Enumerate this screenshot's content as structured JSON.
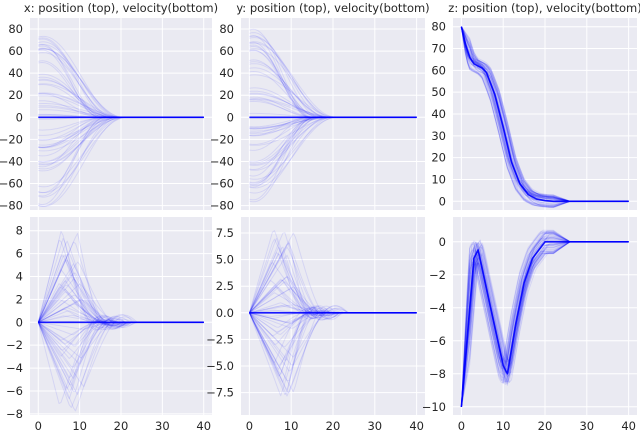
{
  "chart_data": [
    {
      "id": "x_position",
      "type": "line",
      "title": "x: position (top), velocity(bottom)",
      "xlim": [
        -2,
        42
      ],
      "ylim": [
        -84,
        90
      ],
      "xticks": [
        0,
        10,
        20,
        30,
        40
      ],
      "xtick_labels": [],
      "yticks": [
        -80,
        -60,
        -40,
        -20,
        0,
        20,
        40,
        60,
        80
      ],
      "ytick_labels": [
        "−80",
        "−60",
        "−40",
        "−20",
        "0",
        "20",
        "40",
        "60",
        "80"
      ],
      "series": [
        {
          "x": [
            0,
            3,
            6,
            9,
            12,
            15,
            18,
            21,
            24,
            30,
            40
          ],
          "y": [
            0,
            0,
            0,
            0,
            0,
            0,
            0,
            0,
            0,
            0,
            0
          ]
        }
      ],
      "spread": {
        "start": 80,
        "settle_time": 18,
        "peak": 1.1
      },
      "color": "#0000ff",
      "grid": true
    },
    {
      "id": "y_position",
      "type": "line",
      "title": "y: position (top), velocity(bottom)",
      "xlim": [
        -2,
        42
      ],
      "ylim": [
        -84,
        90
      ],
      "xticks": [
        0,
        10,
        20,
        30,
        40
      ],
      "xtick_labels": [],
      "yticks": [
        -80,
        -60,
        -40,
        -20,
        0,
        20,
        40,
        60,
        80
      ],
      "ytick_labels": [
        "−80",
        "−60",
        "−40",
        "−20",
        "0",
        "20",
        "40",
        "60",
        "80"
      ],
      "series": [
        {
          "x": [
            0,
            3,
            6,
            9,
            12,
            15,
            18,
            21,
            24,
            30,
            40
          ],
          "y": [
            0,
            0,
            0,
            0,
            0,
            0,
            0,
            0,
            0,
            0,
            0
          ]
        }
      ],
      "spread": {
        "start": 80,
        "settle_time": 18,
        "peak": 1.1
      },
      "color": "#0000ff",
      "grid": true
    },
    {
      "id": "z_position",
      "type": "line",
      "title": "z: position (top), velocity(bottom)",
      "xlim": [
        -2,
        42
      ],
      "ylim": [
        -4,
        84
      ],
      "xticks": [
        0,
        10,
        20,
        30,
        40
      ],
      "xtick_labels": [],
      "yticks": [
        0,
        10,
        20,
        30,
        40,
        50,
        60,
        70,
        80
      ],
      "ytick_labels": [
        "0",
        "10",
        "20",
        "30",
        "40",
        "50",
        "60",
        "70",
        "80"
      ],
      "series": [
        {
          "x": [
            0,
            1,
            2,
            3,
            4,
            5,
            6,
            8,
            10,
            12,
            14,
            16,
            18,
            20,
            22,
            26,
            40
          ],
          "y": [
            80,
            72,
            66,
            63,
            62,
            61,
            59,
            49,
            34,
            18,
            8,
            3,
            1,
            0.3,
            0,
            0,
            0
          ]
        }
      ],
      "spread_abs": 5,
      "color": "#0000ff",
      "grid": true
    },
    {
      "id": "x_velocity",
      "type": "line",
      "title": "",
      "xlim": [
        -2,
        42
      ],
      "ylim": [
        -8.1,
        9.2
      ],
      "xticks": [
        0,
        10,
        20,
        30,
        40
      ],
      "xtick_labels": [
        "0",
        "10",
        "20",
        "30",
        "40"
      ],
      "yticks": [
        -8,
        -6,
        -4,
        -2,
        0,
        2,
        4,
        6,
        8
      ],
      "ytick_labels": [
        "−8",
        "−6",
        "−4",
        "−2",
        "0",
        "2",
        "4",
        "6",
        "8"
      ],
      "series": [
        {
          "x": [
            0,
            3,
            6,
            9,
            12,
            15,
            18,
            21,
            24,
            30,
            40
          ],
          "y": [
            0,
            0,
            0,
            0,
            0,
            0,
            0,
            0,
            0,
            0,
            0
          ]
        }
      ],
      "spread": {
        "start": 8.2,
        "settle_time": 20,
        "peak": 1.0
      },
      "color": "#0000ff",
      "grid": true
    },
    {
      "id": "y_velocity",
      "type": "line",
      "title": "",
      "xlim": [
        -2,
        42
      ],
      "ylim": [
        -9.6,
        9.0
      ],
      "xticks": [
        0,
        10,
        20,
        30,
        40
      ],
      "xtick_labels": [
        "0",
        "10",
        "20",
        "30",
        "40"
      ],
      "yticks": [
        -7.5,
        -5,
        -2.5,
        0,
        2.5,
        5,
        7.5
      ],
      "ytick_labels": [
        "−7.5",
        "−5.0",
        "−2.5",
        "0.0",
        "2.5",
        "5.0",
        "7.5"
      ],
      "series": [
        {
          "x": [
            0,
            3,
            6,
            9,
            12,
            15,
            18,
            21,
            24,
            30,
            40
          ],
          "y": [
            0,
            0,
            0,
            0,
            0,
            0,
            0,
            0,
            0,
            0,
            0
          ]
        }
      ],
      "spread": {
        "start": 8.0,
        "settle_time": 20,
        "peak": 1.0
      },
      "color": "#0000ff",
      "grid": true
    },
    {
      "id": "z_velocity",
      "type": "line",
      "title": "",
      "xlim": [
        -2,
        42
      ],
      "ylim": [
        -10.5,
        1.5
      ],
      "xticks": [
        0,
        10,
        20,
        30,
        40
      ],
      "xtick_labels": [
        "0",
        "10",
        "20",
        "30",
        "40"
      ],
      "yticks": [
        -10,
        -8,
        -6,
        -4,
        -2,
        0
      ],
      "ytick_labels": [
        "−10",
        "−8",
        "−6",
        "−4",
        "−2",
        "0"
      ],
      "series": [
        {
          "x": [
            0,
            3,
            4,
            7,
            10,
            11,
            13,
            15,
            17,
            20,
            24,
            40
          ],
          "y": [
            -10,
            -1,
            -0.5,
            -4,
            -7.5,
            -8,
            -5,
            -2.5,
            -1,
            0,
            0,
            0
          ]
        }
      ],
      "spread_abs": 1.2,
      "color": "#0000ff",
      "grid": true
    }
  ]
}
